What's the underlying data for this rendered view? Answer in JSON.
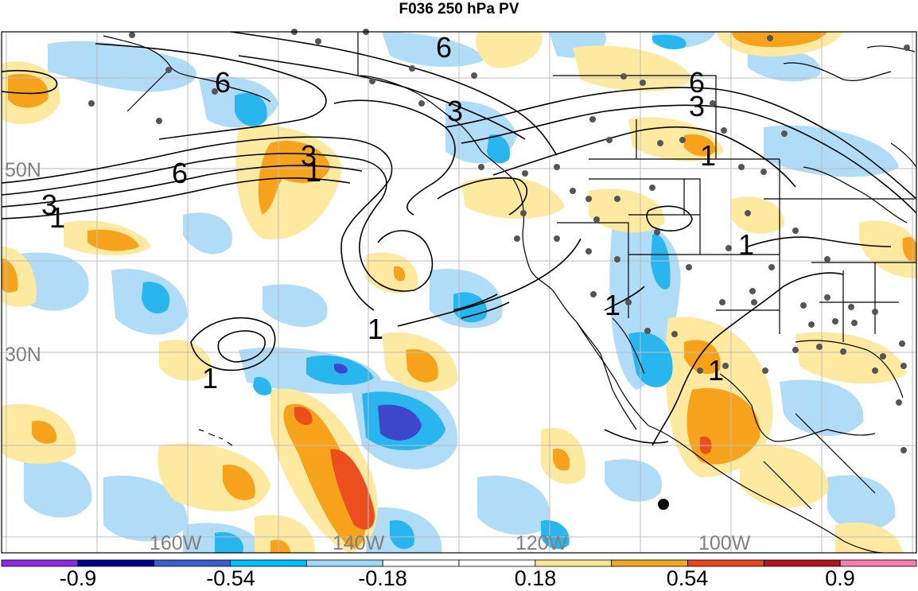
{
  "title": "F036 250 hPa PV",
  "latitude_labels": [
    "50N",
    "30N"
  ],
  "longitude_labels": [
    "160W",
    "140W",
    "120W",
    "100W"
  ],
  "contour_labels": {
    "six": "6",
    "three": "3",
    "one": "1"
  },
  "colorbar": {
    "labels": [
      "-0.9",
      "-0.54",
      "-0.18",
      "0.18",
      "0.54",
      "0.9"
    ],
    "colors": [
      "#8a2be2",
      "#00008b",
      "#3a5fcd",
      "#00bfff",
      "#a0d8f7",
      "#ffffff",
      "#ffffff",
      "#fbe592",
      "#f5a623",
      "#e8471d",
      "#b0151f",
      "#f77fb0"
    ]
  },
  "palette": {
    "light_blue": "#b0dcf7",
    "mid_blue": "#29b6ef",
    "dark_blue": "#3e47c9",
    "light_yellow": "#fde9a0",
    "orange": "#f7a21b",
    "red_orange": "#ec4e1e",
    "coast": "#000000",
    "station": "#555555"
  }
}
